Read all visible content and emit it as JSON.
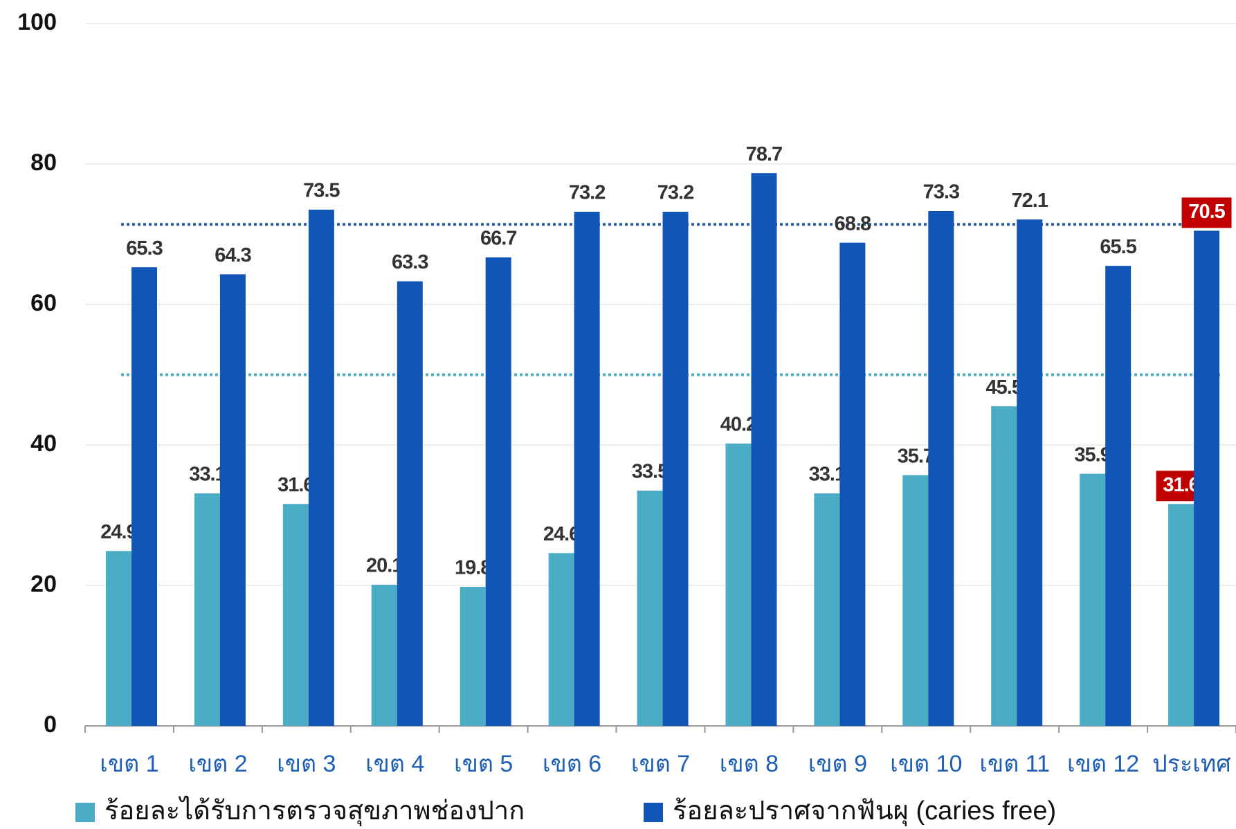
{
  "chart_data": {
    "type": "bar",
    "categories": [
      "เขต 1",
      "เขต 2",
      "เขต 3",
      "เขต 4",
      "เขต 5",
      "เขต 6",
      "เขต 7",
      "เขต 8",
      "เขต 9",
      "เขต 10",
      "เขต 11",
      "เขต 12",
      "ประเทศ"
    ],
    "series": [
      {
        "name": "ร้อยละได้รับการตรวจสุขภาพช่องปาก",
        "color": "#4bacc6",
        "values": [
          24.9,
          33.1,
          31.6,
          20.1,
          19.8,
          24.6,
          33.5,
          40.2,
          33.1,
          35.7,
          45.5,
          35.9,
          31.6
        ]
      },
      {
        "name": "ร้อยละปราศจากฟันผุ (caries free)",
        "color": "#1155b8",
        "values": [
          65.3,
          64.3,
          73.5,
          63.3,
          66.7,
          73.2,
          73.2,
          78.7,
          68.8,
          73.3,
          72.1,
          65.5,
          70.5
        ]
      }
    ],
    "ylim": [
      0,
      100
    ],
    "yticks": [
      0,
      20,
      40,
      60,
      80,
      100
    ],
    "grid": true,
    "reference_lines": [
      {
        "value": 71.4,
        "color": "#2e5fa8"
      },
      {
        "value": 50,
        "color": "#4bacc6"
      }
    ],
    "highlight_index": 12,
    "highlight_color": "#c00000"
  }
}
